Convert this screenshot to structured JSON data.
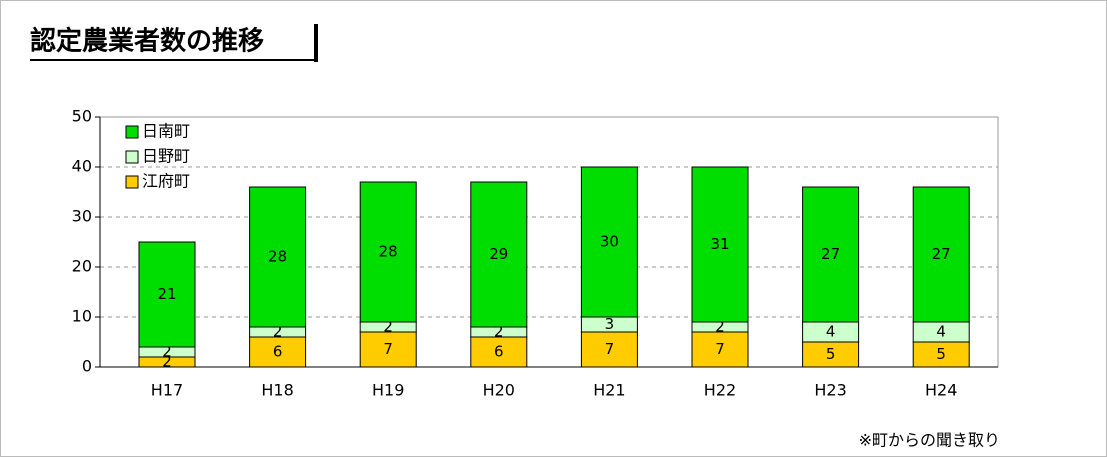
{
  "chart_data": {
    "type": "stacked_bar",
    "title": "認定農業者数の推移",
    "categories": [
      "H17",
      "H18",
      "H19",
      "H20",
      "H21",
      "H22",
      "H23",
      "H24"
    ],
    "series": [
      {
        "name": "江府町",
        "color": "#ffcc00",
        "values": [
          2,
          6,
          7,
          6,
          7,
          7,
          5,
          5
        ]
      },
      {
        "name": "日野町",
        "color": "#ccffcc",
        "values": [
          2,
          2,
          2,
          2,
          3,
          2,
          4,
          4
        ]
      },
      {
        "name": "日南町",
        "color": "#00dd00",
        "values": [
          21,
          28,
          28,
          29,
          30,
          31,
          27,
          27
        ]
      }
    ],
    "ylim": [
      0,
      50
    ],
    "yticks": [
      0,
      10,
      20,
      30,
      40,
      50
    ],
    "grid": true,
    "legend": "top-left",
    "note": "※町からの聞き取り"
  }
}
